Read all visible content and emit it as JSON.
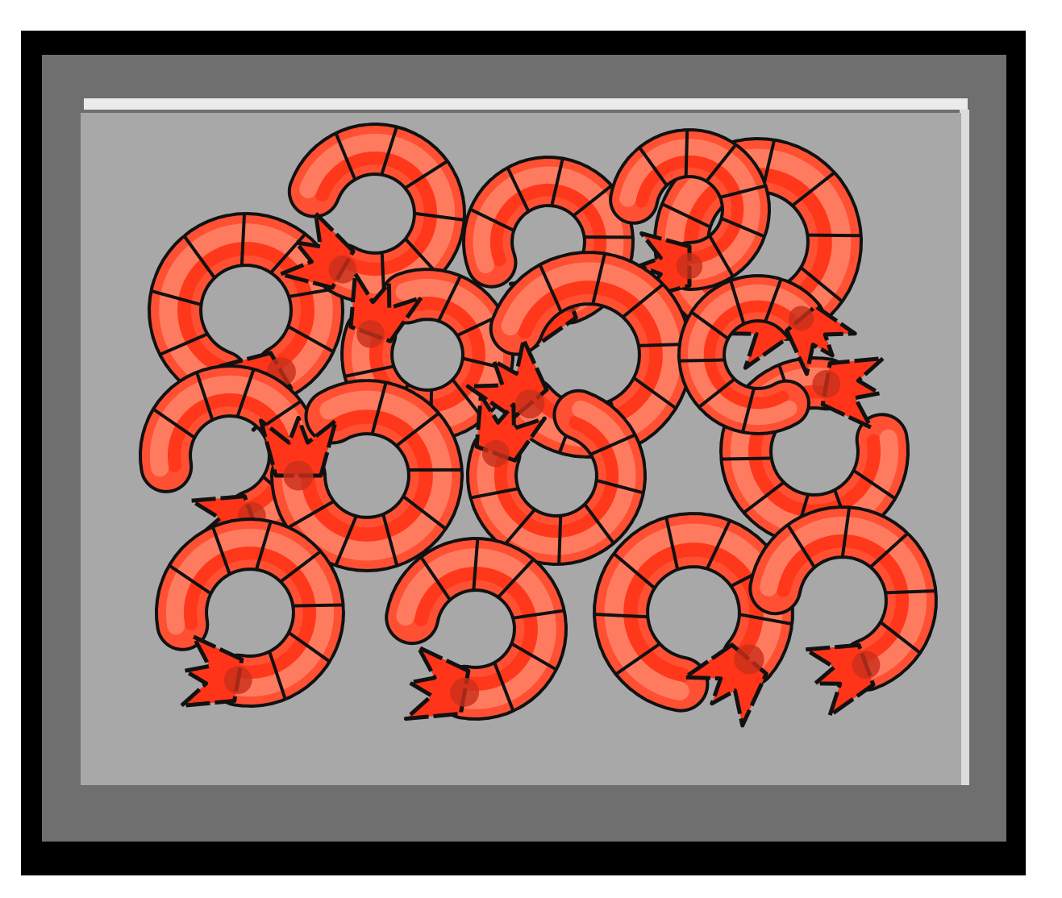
{
  "colors": {
    "page_background": "#ffffff",
    "outer_frame": "#000000",
    "inner_frame": "#6f6f6f",
    "board": "#a8a8a8",
    "board_highlight": "#ebebeb",
    "board_shadow": "#dcdcdc",
    "shrimp_light": "#ff7b5f",
    "shrimp_mid": "#ff5033",
    "shrimp_dark": "#ff3418",
    "shrimp_shadow": "#c9301c",
    "outline": "#111111"
  },
  "scene": {
    "kind": "pile of cartoon shrimp",
    "shrimp_count": 16
  }
}
